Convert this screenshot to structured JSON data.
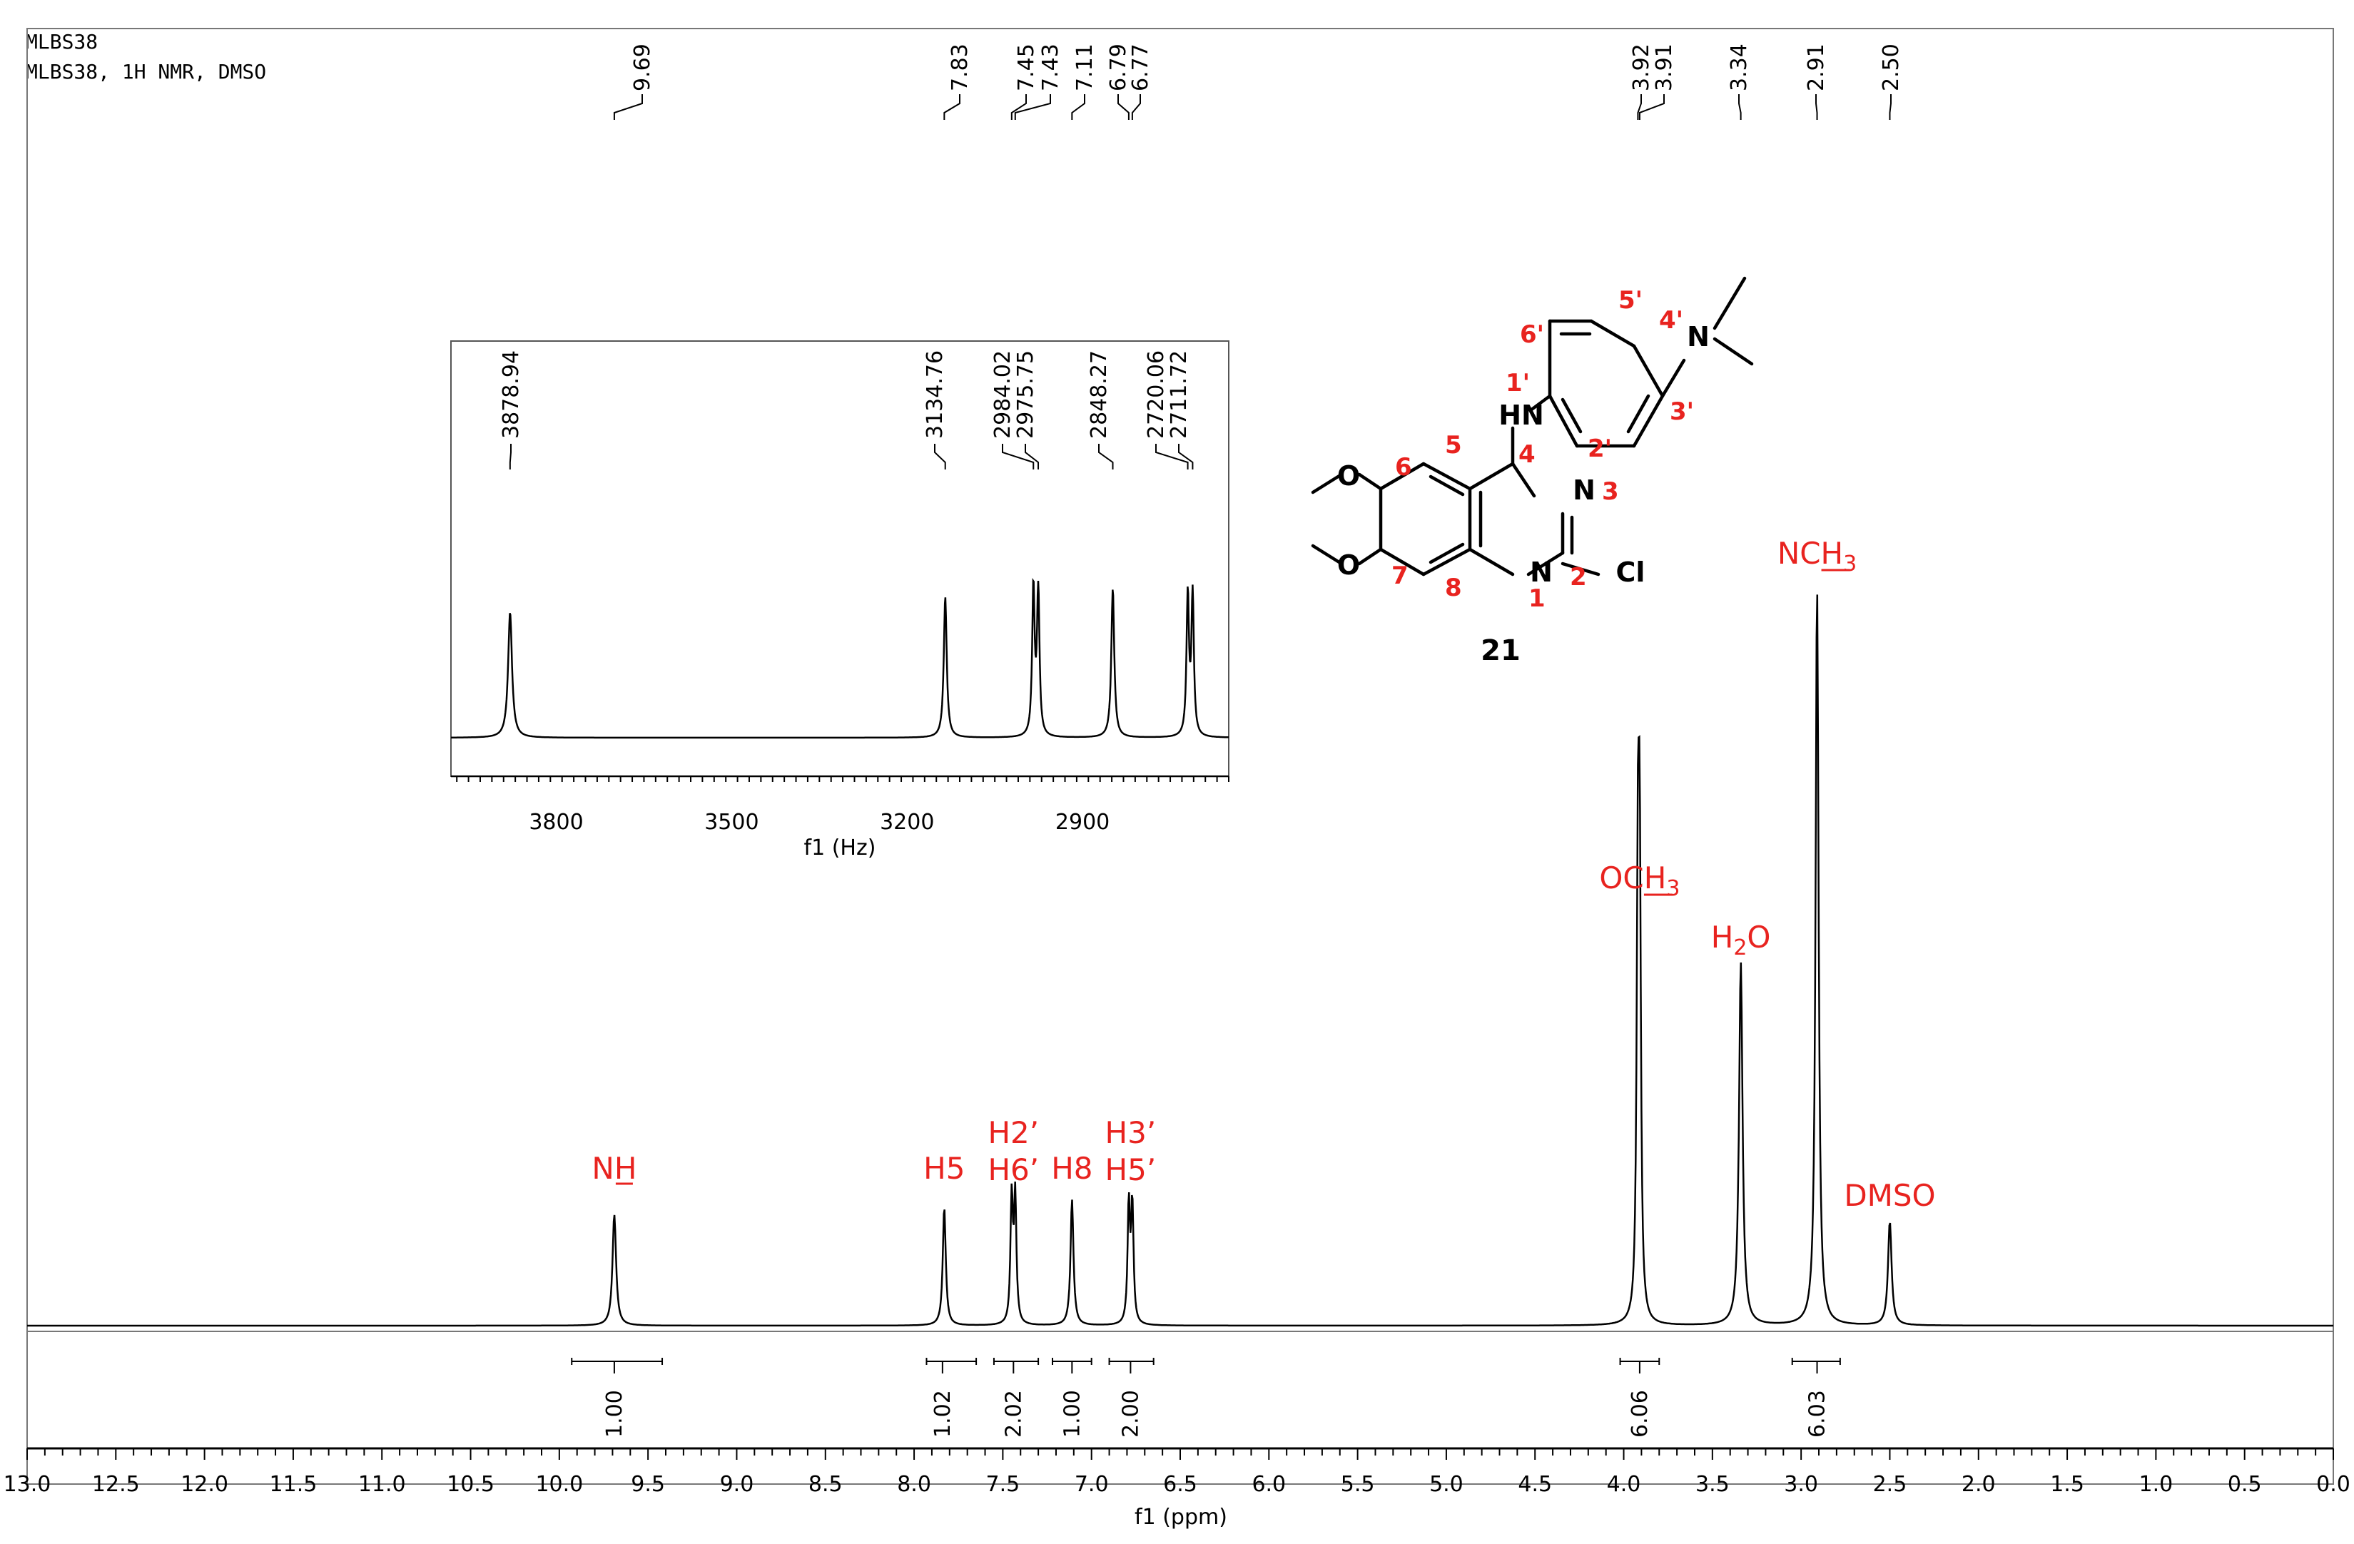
{
  "header": {
    "line1": "MLBS38",
    "line2": "MLBS38, 1H NMR, DMSO"
  },
  "chart_data": {
    "type": "line",
    "xlabel": "f1 (ppm)",
    "xlim": [
      13.0,
      0.0
    ],
    "ticks": [
      "13.0",
      "12.5",
      "12.0",
      "11.5",
      "11.0",
      "10.5",
      "10.0",
      "9.5",
      "9.0",
      "8.5",
      "8.0",
      "7.5",
      "7.0",
      "6.5",
      "6.0",
      "5.5",
      "5.0",
      "4.5",
      "4.0",
      "3.5",
      "3.0",
      "2.5",
      "2.0",
      "1.5",
      "1.0",
      "0.5",
      "0.0"
    ],
    "peak_labels": [
      "9.69",
      "7.83",
      "7.45",
      "7.43",
      "7.11",
      "6.79",
      "6.77",
      "3.92",
      "3.91",
      "3.34",
      "2.91",
      "2.50"
    ],
    "peaks": [
      {
        "ppm": 9.69,
        "height": 0.15,
        "width": 0.012
      },
      {
        "ppm": 7.83,
        "height": 0.16,
        "width": 0.01
      },
      {
        "ppm": 7.45,
        "height": 0.17,
        "width": 0.008
      },
      {
        "ppm": 7.43,
        "height": 0.17,
        "width": 0.008
      },
      {
        "ppm": 7.11,
        "height": 0.17,
        "width": 0.01
      },
      {
        "ppm": 6.79,
        "height": 0.16,
        "width": 0.008
      },
      {
        "ppm": 6.77,
        "height": 0.16,
        "width": 0.008
      },
      {
        "ppm": 3.92,
        "height": 0.55,
        "width": 0.008
      },
      {
        "ppm": 3.91,
        "height": 0.55,
        "width": 0.008
      },
      {
        "ppm": 3.34,
        "height": 0.49,
        "width": 0.012
      },
      {
        "ppm": 2.91,
        "height": 1.0,
        "width": 0.01
      },
      {
        "ppm": 2.5,
        "height": 0.14,
        "width": 0.012
      }
    ],
    "assignments": [
      {
        "ppm": 9.69,
        "lines": [
          "NH"
        ],
        "underline_last": true
      },
      {
        "ppm": 7.83,
        "lines": [
          "H5"
        ]
      },
      {
        "ppm": 7.44,
        "lines": [
          "H2’",
          "H6’"
        ]
      },
      {
        "ppm": 7.11,
        "lines": [
          "H8"
        ]
      },
      {
        "ppm": 6.78,
        "lines": [
          "H3’",
          "H5’"
        ]
      },
      {
        "ppm": 3.91,
        "lines": [
          "OCH3"
        ]
      },
      {
        "ppm": 3.34,
        "lines": [
          "H2O"
        ]
      },
      {
        "ppm": 2.91,
        "lines": [
          "NCH3"
        ]
      },
      {
        "ppm": 2.5,
        "lines": [
          "DMSO"
        ]
      }
    ],
    "integrals": [
      {
        "from": 9.93,
        "to": 9.42,
        "label_ppm": 9.69,
        "value": "1.00"
      },
      {
        "from": 7.93,
        "to": 7.65,
        "label_ppm": 7.84,
        "value": "1.02"
      },
      {
        "from": 7.55,
        "to": 7.3,
        "label_ppm": 7.44,
        "value": "2.02"
      },
      {
        "from": 7.22,
        "to": 7.0,
        "label_ppm": 7.11,
        "value": "1.00"
      },
      {
        "from": 6.9,
        "to": 6.65,
        "label_ppm": 6.78,
        "value": "2.00"
      },
      {
        "from": 4.02,
        "to": 3.8,
        "label_ppm": 3.91,
        "value": "6.06"
      },
      {
        "from": 3.05,
        "to": 2.78,
        "label_ppm": 2.91,
        "value": "6.03"
      }
    ],
    "inset": {
      "xlabel": "f1 (Hz)",
      "xlim": [
        3980,
        2650
      ],
      "ticks": [
        "3800",
        "3500",
        "3200",
        "2900"
      ],
      "peak_labels": [
        "3878.94",
        "3134.76",
        "2984.02",
        "2975.75",
        "2848.27",
        "2720.06",
        "2711.72"
      ],
      "peaks": [
        {
          "hz": 3878.94,
          "height": 0.8,
          "width": 4
        },
        {
          "hz": 3134.76,
          "height": 0.9,
          "width": 3
        },
        {
          "hz": 2984.02,
          "height": 0.95,
          "width": 2.5
        },
        {
          "hz": 2975.75,
          "height": 0.95,
          "width": 2.5
        },
        {
          "hz": 2848.27,
          "height": 0.95,
          "width": 3
        },
        {
          "hz": 2720.06,
          "height": 0.9,
          "width": 2.5
        },
        {
          "hz": 2711.72,
          "height": 0.9,
          "width": 2.5
        }
      ]
    }
  },
  "structure": {
    "compound_number": "21",
    "atoms": {
      "N_dimethyl": "N",
      "NH": "HN",
      "N3": "N",
      "N1": "N",
      "Cl": "Cl",
      "O6": "O",
      "O7": "O"
    },
    "numbering": [
      "5'",
      "6'",
      "4'",
      "1'",
      "3'",
      "2'",
      "6",
      "5",
      "4",
      "3",
      "7",
      "8",
      "1",
      "2"
    ]
  },
  "colors": {
    "spectrum": "#000000",
    "annotation": "#e8231f",
    "frame": "#000000"
  }
}
